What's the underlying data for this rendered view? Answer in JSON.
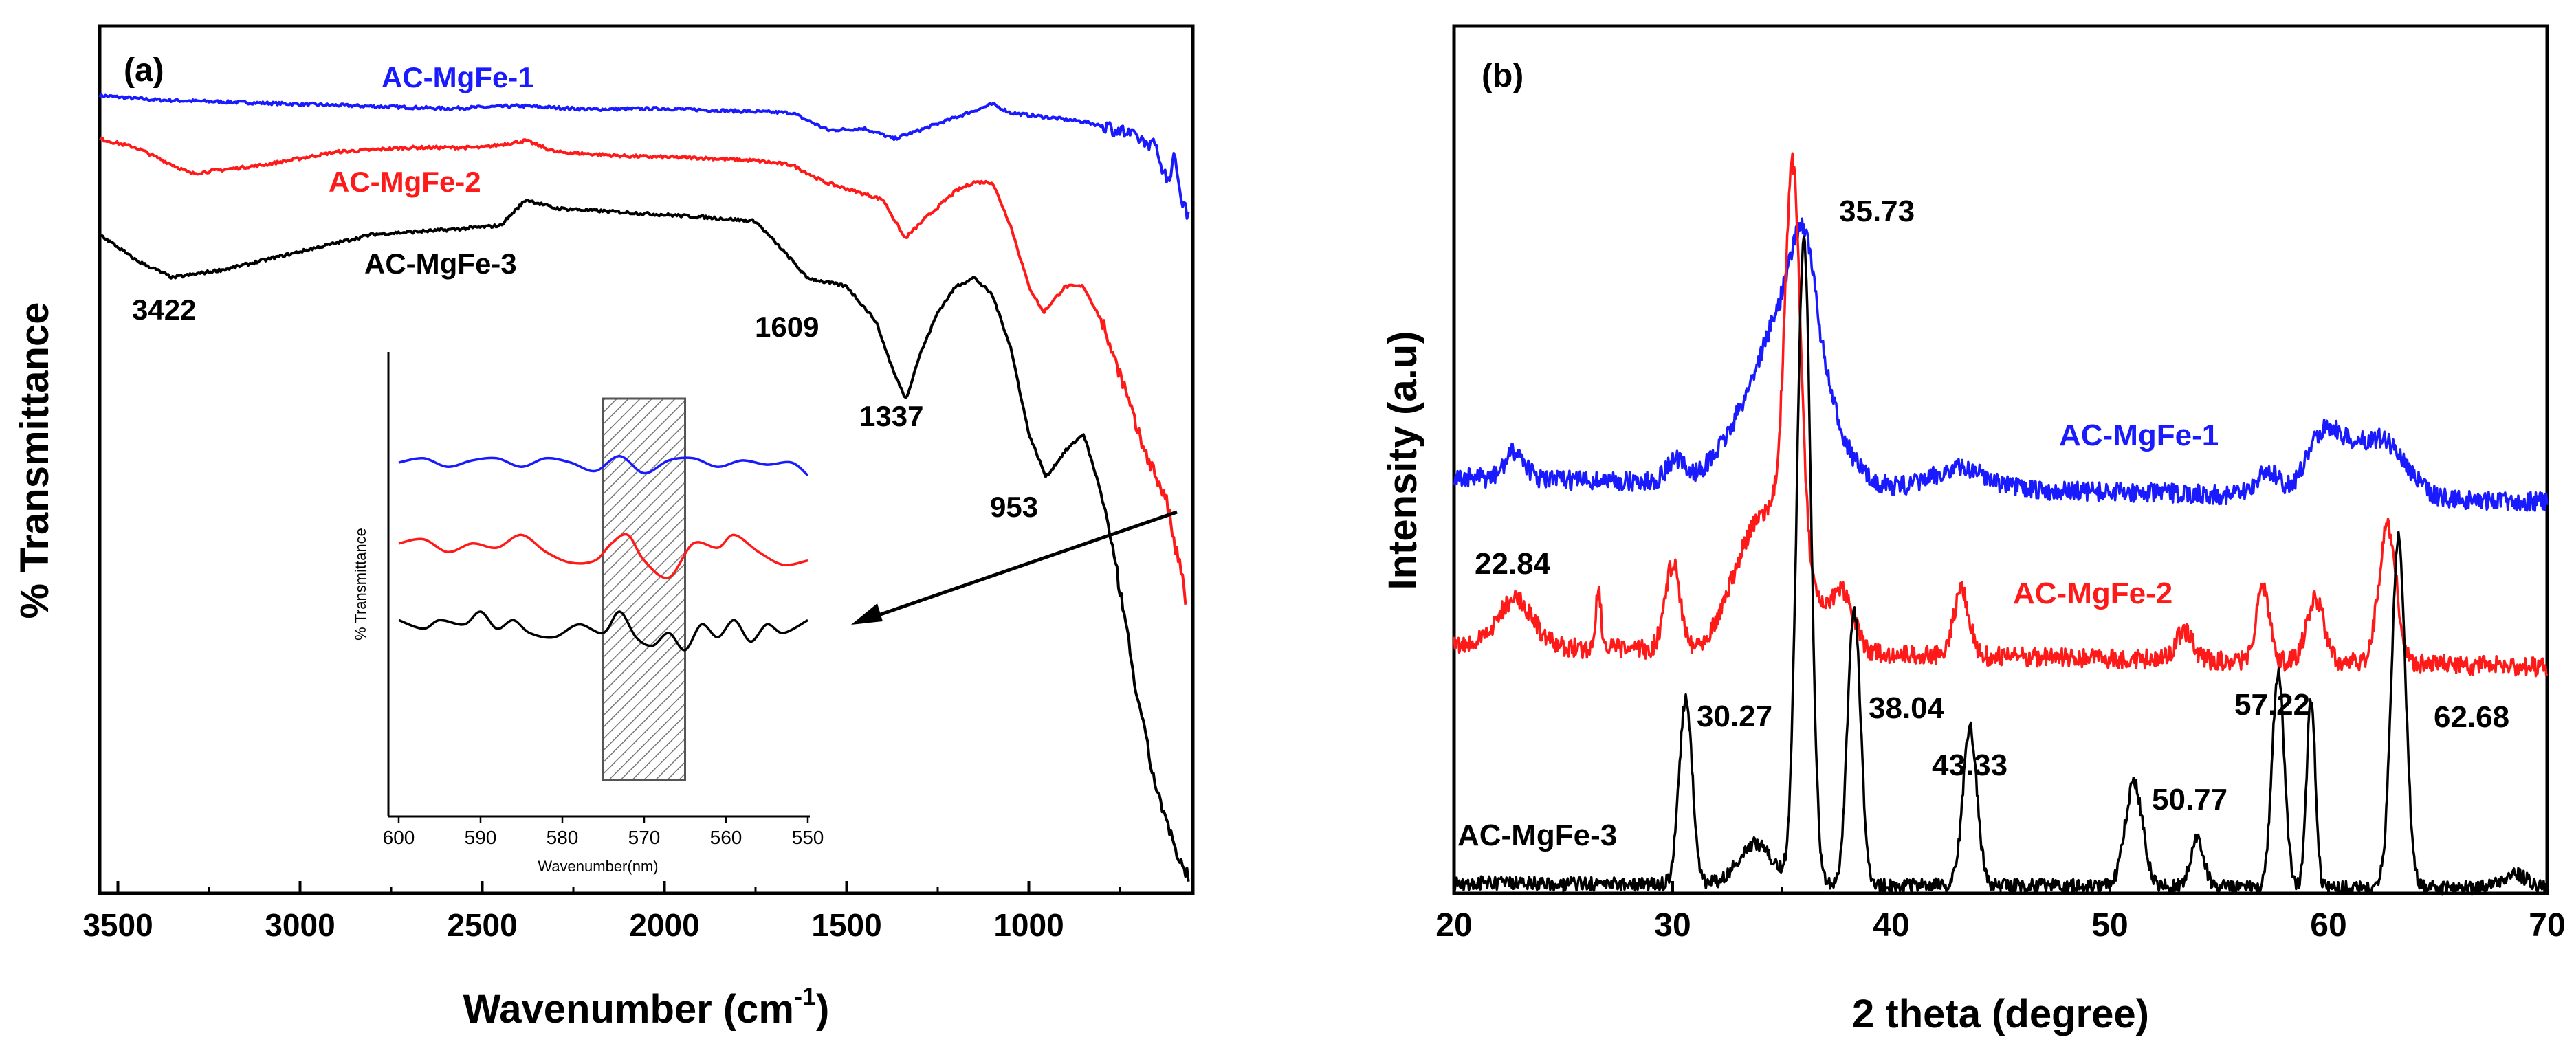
{
  "colors": {
    "blue": "#1a1aff",
    "red": "#ff1a1a",
    "black": "#000000",
    "hatch": "#777777"
  },
  "chart_data": [
    {
      "panel": "(a)",
      "type": "line",
      "xlabel": "Wavenumber (cm",
      "xlabel_sup": "-1",
      "xlabel_close": ")",
      "ylabel": "% Transmittance",
      "xlim": [
        3550,
        550
      ],
      "x_reversed": true,
      "x_ticks": [
        3500,
        3000,
        2500,
        2000,
        1500,
        1000
      ],
      "x_tick_labels": [
        "3500",
        "3000",
        "2500",
        "2000",
        "1500",
        "1000"
      ],
      "y_ticks_shown": false,
      "series": [
        {
          "name": "AC-MgFe-1",
          "color_key": "blue",
          "points": [
            [
              3550,
              92
            ],
            [
              3400,
              91.5
            ],
            [
              3000,
              91
            ],
            [
              2600,
              90.5
            ],
            [
              2400,
              90.8
            ],
            [
              2200,
              90.4
            ],
            [
              2000,
              90.5
            ],
            [
              1800,
              90.2
            ],
            [
              1650,
              90
            ],
            [
              1550,
              88
            ],
            [
              1450,
              88.2
            ],
            [
              1370,
              87
            ],
            [
              1300,
              88
            ],
            [
              1200,
              89.5
            ],
            [
              1100,
              91
            ],
            [
              1050,
              90
            ],
            [
              950,
              89.5
            ],
            [
              850,
              89
            ],
            [
              750,
              88
            ],
            [
              700,
              87
            ],
            [
              650,
              86
            ],
            [
              620,
              82
            ],
            [
              600,
              85
            ],
            [
              580,
              80
            ],
            [
              560,
              78
            ]
          ]
        },
        {
          "name": "AC-MgFe-2",
          "color_key": "red",
          "points": [
            [
              3550,
              87
            ],
            [
              3450,
              86
            ],
            [
              3300,
              83
            ],
            [
              3100,
              84
            ],
            [
              2900,
              85.5
            ],
            [
              2700,
              86
            ],
            [
              2500,
              86
            ],
            [
              2380,
              86.8
            ],
            [
              2300,
              85.5
            ],
            [
              2100,
              85
            ],
            [
              1900,
              84.8
            ],
            [
              1750,
              84.5
            ],
            [
              1650,
              84
            ],
            [
              1560,
              82
            ],
            [
              1480,
              81
            ],
            [
              1400,
              80
            ],
            [
              1340,
              75.5
            ],
            [
              1280,
              78
            ],
            [
              1200,
              81
            ],
            [
              1150,
              82
            ],
            [
              1100,
              82
            ],
            [
              1050,
              77
            ],
            [
              1000,
              70
            ],
            [
              960,
              67
            ],
            [
              900,
              70
            ],
            [
              850,
              70
            ],
            [
              800,
              66
            ],
            [
              750,
              60
            ],
            [
              700,
              53
            ],
            [
              650,
              48
            ],
            [
              620,
              45
            ],
            [
              600,
              40
            ],
            [
              580,
              37
            ],
            [
              570,
              33
            ]
          ]
        },
        {
          "name": "AC-MgFe-3",
          "color_key": "black",
          "points": [
            [
              3550,
              76
            ],
            [
              3450,
              73
            ],
            [
              3350,
              71
            ],
            [
              3200,
              72
            ],
            [
              3000,
              74
            ],
            [
              2800,
              76
            ],
            [
              2600,
              76.5
            ],
            [
              2450,
              77
            ],
            [
              2380,
              80
            ],
            [
              2300,
              79
            ],
            [
              2100,
              78.5
            ],
            [
              1900,
              78
            ],
            [
              1750,
              77.5
            ],
            [
              1650,
              73
            ],
            [
              1610,
              71
            ],
            [
              1560,
              70.5
            ],
            [
              1500,
              70
            ],
            [
              1420,
              66
            ],
            [
              1370,
              60
            ],
            [
              1337,
              57
            ],
            [
              1300,
              62
            ],
            [
              1250,
              67
            ],
            [
              1200,
              70
            ],
            [
              1150,
              71
            ],
            [
              1100,
              69
            ],
            [
              1050,
              63
            ],
            [
              1000,
              53
            ],
            [
              953,
              48
            ],
            [
              900,
              51
            ],
            [
              850,
              53
            ],
            [
              800,
              46
            ],
            [
              750,
              35
            ],
            [
              700,
              22
            ],
            [
              650,
              12
            ],
            [
              620,
              8
            ],
            [
              600,
              5
            ],
            [
              580,
              3
            ],
            [
              560,
              2
            ]
          ]
        }
      ],
      "peak_labels": [
        "3422",
        "1609",
        "1337",
        "953"
      ],
      "inset": {
        "xlabel": "Wavenumber(nm)",
        "ylabel": "% Transmittance",
        "xlim": [
          600,
          550
        ],
        "x_ticks": [
          600,
          590,
          580,
          570,
          560,
          550
        ],
        "x_tick_labels": [
          "600",
          "590",
          "580",
          "570",
          "560",
          "550"
        ],
        "highlight_range": [
          575,
          565
        ],
        "series": [
          {
            "name": "AC-MgFe-1",
            "color_key": "blue",
            "points": [
              [
                600,
                85
              ],
              [
                597,
                86
              ],
              [
                594,
                84
              ],
              [
                591,
                85.5
              ],
              [
                588,
                86
              ],
              [
                585,
                84
              ],
              [
                582,
                86
              ],
              [
                579,
                85
              ],
              [
                576,
                83
              ],
              [
                573,
                86.5
              ],
              [
                570,
                82.5
              ],
              [
                567,
                85.5
              ],
              [
                564,
                86
              ],
              [
                561,
                84
              ],
              [
                558,
                85.5
              ],
              [
                555,
                84.5
              ],
              [
                552,
                85
              ],
              [
                550,
                82
              ]
            ]
          },
          {
            "name": "AC-MgFe-2",
            "color_key": "red",
            "points": [
              [
                600,
                66
              ],
              [
                597,
                67
              ],
              [
                594,
                64
              ],
              [
                591,
                66
              ],
              [
                588,
                65
              ],
              [
                585,
                68
              ],
              [
                582,
                64
              ],
              [
                579,
                61.5
              ],
              [
                576,
                62
              ],
              [
                574,
                66
              ],
              [
                572,
                68
              ],
              [
                570,
                62
              ],
              [
                567,
                58
              ],
              [
                564,
                66
              ],
              [
                561,
                65
              ],
              [
                559,
                68
              ],
              [
                556,
                64
              ],
              [
                553,
                61
              ],
              [
                550,
                62
              ]
            ]
          },
          {
            "name": "AC-MgFe-3",
            "color_key": "black",
            "points": [
              [
                600,
                48
              ],
              [
                597,
                46
              ],
              [
                595,
                48
              ],
              [
                592,
                47
              ],
              [
                590,
                50
              ],
              [
                588,
                46
              ],
              [
                586,
                48
              ],
              [
                584,
                45
              ],
              [
                581,
                44
              ],
              [
                578,
                47
              ],
              [
                575,
                45
              ],
              [
                573,
                50
              ],
              [
                571,
                44
              ],
              [
                569,
                42
              ],
              [
                567,
                45
              ],
              [
                565,
                41
              ],
              [
                563,
                47
              ],
              [
                561,
                44
              ],
              [
                559,
                48
              ],
              [
                557,
                43
              ],
              [
                555,
                47
              ],
              [
                553,
                45
              ],
              [
                550,
                48
              ]
            ]
          }
        ]
      }
    },
    {
      "panel": "(b)",
      "type": "line",
      "xlabel": "2 theta (degree)",
      "ylabel": "Intensity (a.u)",
      "xlim": [
        20,
        70
      ],
      "x_ticks": [
        20,
        30,
        40,
        50,
        60,
        70
      ],
      "x_tick_labels": [
        "20",
        "30",
        "40",
        "50",
        "60",
        "70"
      ],
      "y_ticks_shown": false,
      "series": [
        {
          "name": "AC-MgFe-1",
          "color_key": "blue"
        },
        {
          "name": "AC-MgFe-2",
          "color_key": "red"
        },
        {
          "name": "AC-MgFe-3",
          "color_key": "black"
        }
      ],
      "peak_labels": [
        "35.73",
        "22.84",
        "30.27",
        "38.04",
        "43.33",
        "50.77",
        "57.22",
        "62.68"
      ]
    }
  ]
}
